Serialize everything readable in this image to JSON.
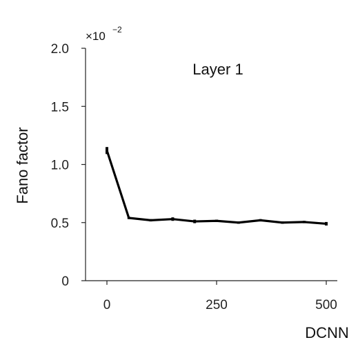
{
  "chart_data": {
    "type": "line",
    "annotation": "Layer 1",
    "xlabel": "DCNN",
    "ylabel": "Fano factor",
    "y_multiplier": {
      "base": "×10",
      "exponent": "−2"
    },
    "xlim": [
      0,
      500
    ],
    "ylim": [
      0,
      2.0
    ],
    "x_ticks": [
      0,
      250,
      500
    ],
    "x_tick_labels": [
      "0",
      "250",
      "500"
    ],
    "y_ticks": [
      0,
      0.5,
      1.0,
      1.5,
      2.0
    ],
    "y_tick_labels": [
      "0",
      "0.5",
      "1.0",
      "1.5",
      "2.0"
    ],
    "grid": false,
    "series": [
      {
        "x": [
          0,
          50,
          100,
          150,
          200,
          250,
          300,
          350,
          400,
          450,
          500
        ],
        "y": [
          1.12,
          0.54,
          0.52,
          0.53,
          0.51,
          0.515,
          0.5,
          0.52,
          0.5,
          0.505,
          0.49
        ],
        "err": [
          0.03,
          0.01,
          0.01,
          0.015,
          0.015,
          0.01,
          0.01,
          0.01,
          0.01,
          0.01,
          0.015
        ],
        "color": "#000000"
      }
    ]
  }
}
